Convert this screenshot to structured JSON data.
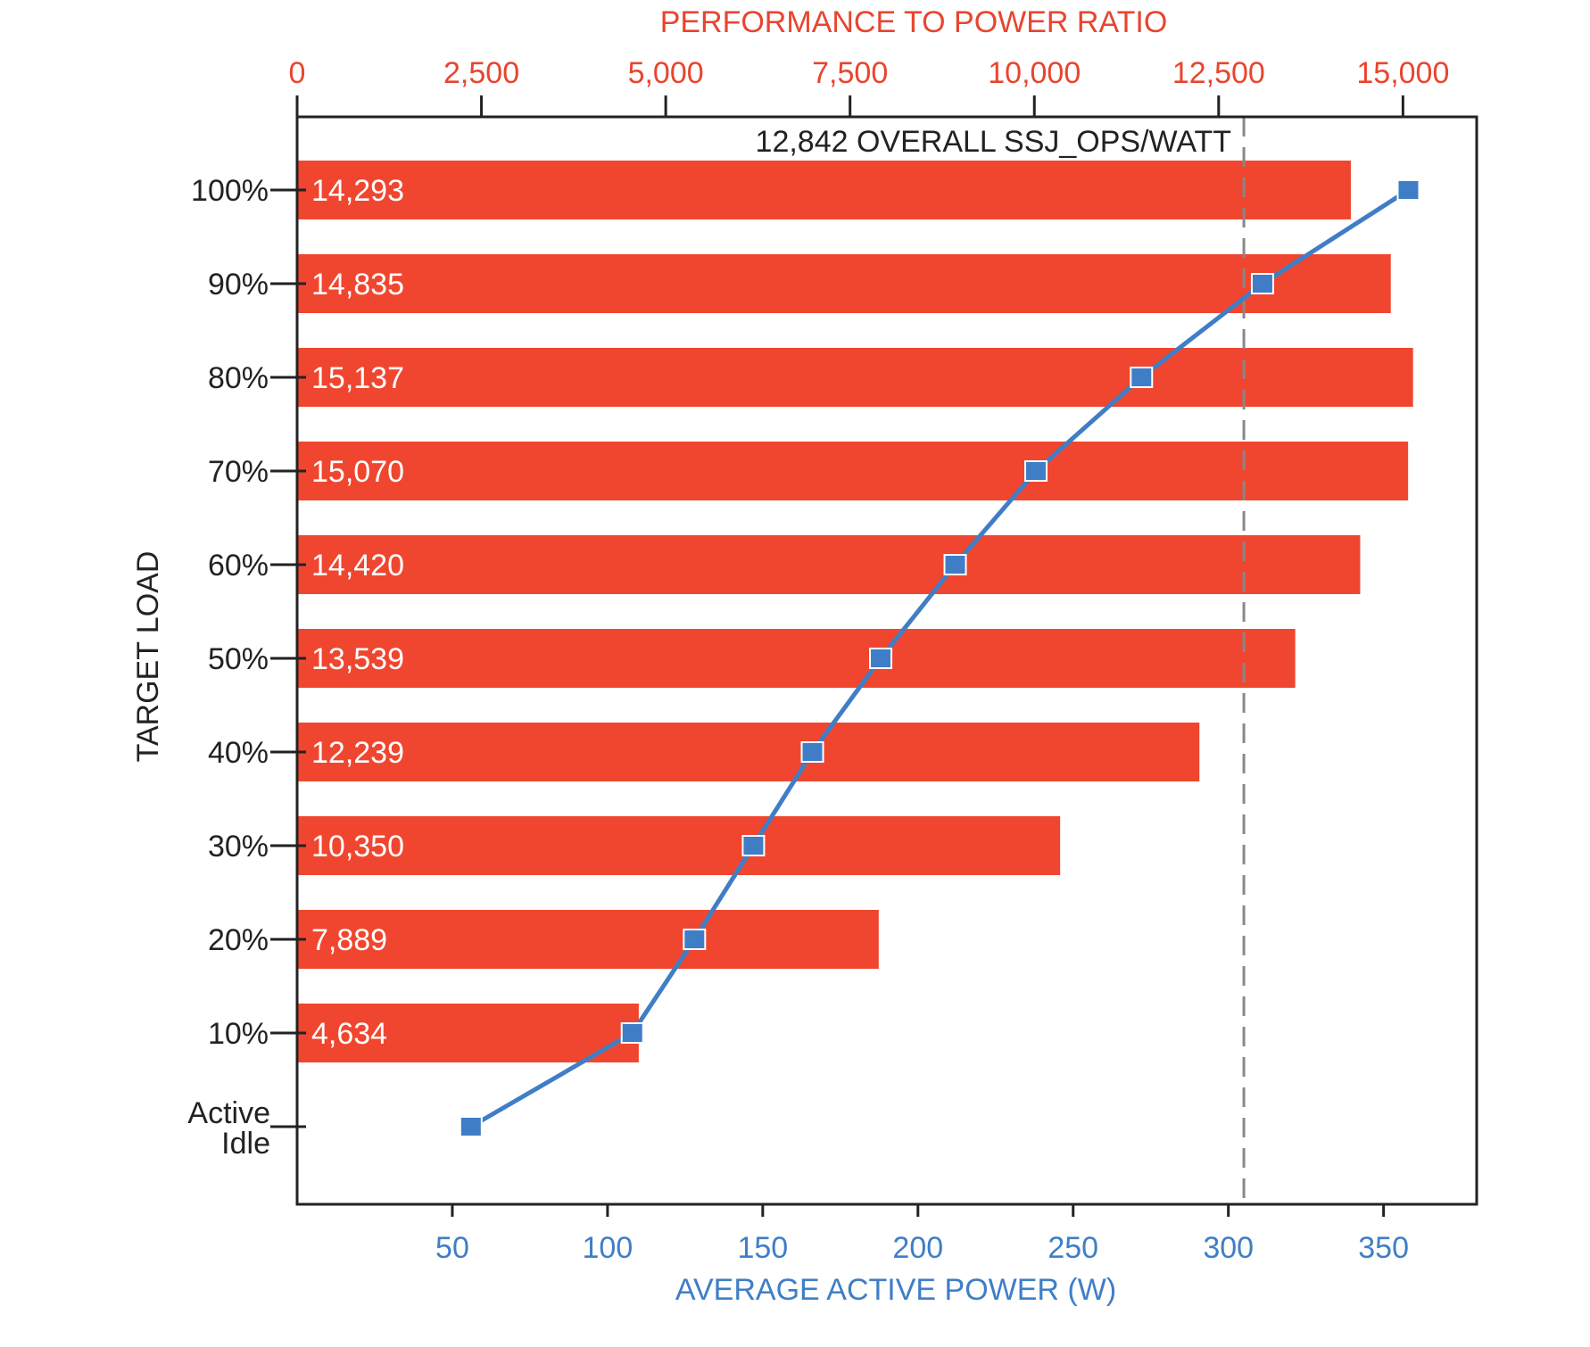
{
  "chart_data": {
    "type": "bar",
    "orientation": "horizontal",
    "colors": {
      "bars": "#F0462F",
      "line": "#3F7EC7",
      "axis": "#222222",
      "top_axis_text": "#E8452F",
      "bottom_axis_text": "#3F7EC7",
      "reference": "#888888"
    },
    "categories": [
      "100%",
      "90%",
      "80%",
      "70%",
      "60%",
      "50%",
      "40%",
      "30%",
      "20%",
      "10%",
      "Active Idle"
    ],
    "category_display": [
      "100%",
      "90%",
      "80%",
      "70%",
      "60%",
      "50%",
      "40%",
      "30%",
      "20%",
      "10%",
      [
        "Active",
        "Idle"
      ]
    ],
    "ylabel": "TARGET LOAD",
    "bar_axis": {
      "label": "PERFORMANCE TO POWER RATIO",
      "position": "top",
      "xlim": [
        0,
        16000
      ],
      "ticks": [
        0,
        2500,
        5000,
        7500,
        10000,
        12500,
        15000
      ],
      "tick_labels": [
        "0",
        "2,500",
        "5,000",
        "7,500",
        "10,000",
        "12,500",
        "15,000"
      ]
    },
    "line_axis": {
      "label": "AVERAGE ACTIVE POWER (W)",
      "position": "bottom",
      "xlim": [
        0,
        380
      ],
      "ticks": [
        50,
        100,
        150,
        200,
        250,
        300,
        350
      ],
      "tick_labels": [
        "50",
        "100",
        "150",
        "200",
        "250",
        "300",
        "350"
      ]
    },
    "series": [
      {
        "name": "PERFORMANCE TO POWER RATIO",
        "type": "bar",
        "values": [
          14293,
          14835,
          15137,
          15070,
          14420,
          13539,
          12239,
          10350,
          7889,
          4634,
          null
        ],
        "value_labels": [
          "14,293",
          "14,835",
          "15,137",
          "15,070",
          "14,420",
          "13,539",
          "12,239",
          "10,350",
          "7,889",
          "4,634",
          ""
        ]
      },
      {
        "name": "AVERAGE ACTIVE POWER (W)",
        "type": "line",
        "values": [
          358,
          311,
          272,
          238,
          212,
          188,
          166,
          147,
          128,
          108,
          56
        ]
      }
    ],
    "reference_line": {
      "value": 12842,
      "label": "12,842 OVERALL SSJ_OPS/WATT",
      "style": "dashed"
    },
    "grid": false,
    "legend": "none"
  }
}
